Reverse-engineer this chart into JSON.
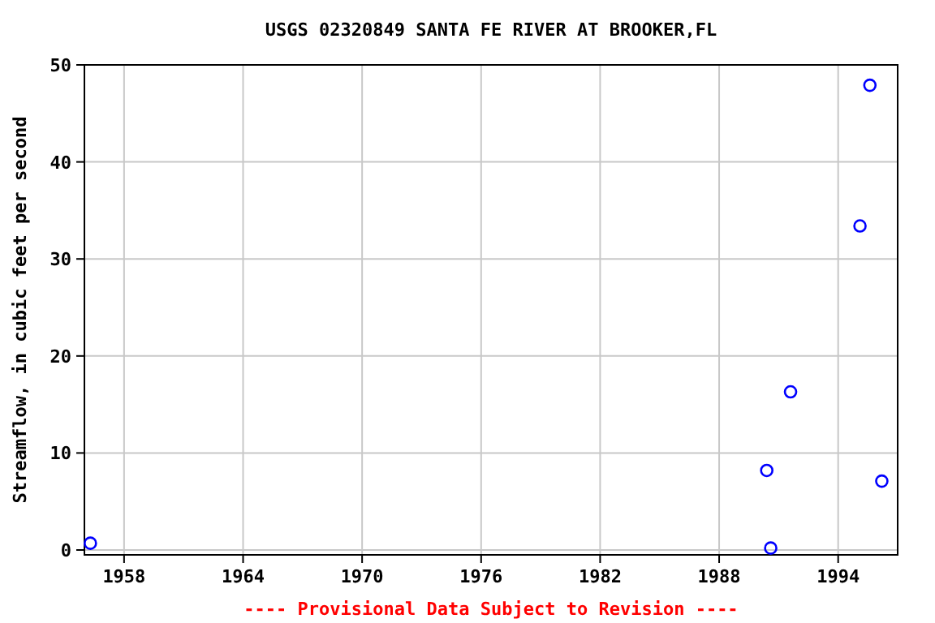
{
  "chart_data": {
    "type": "scatter",
    "title": "USGS 02320849 SANTA FE RIVER AT BROOKER,FL",
    "ylabel": "Streamflow, in cubic feet per second",
    "x": [
      1956.3,
      1990.4,
      1990.6,
      1991.6,
      1995.1,
      1995.6,
      1996.2
    ],
    "series": [
      {
        "color": "#0000ff",
        "values": [
          0.7,
          8.2,
          0.2,
          16.3,
          33.4,
          47.9,
          7.1
        ]
      }
    ],
    "xlim": [
      1956,
      1997
    ],
    "xticks": [
      1958,
      1964,
      1970,
      1976,
      1982,
      1988,
      1994
    ],
    "ylim": [
      -0.5,
      50
    ],
    "yticks": [
      0,
      10,
      20,
      30,
      40,
      50
    ],
    "grid": true,
    "marker": "circle",
    "annotations": [
      "---- Provisional Data Subject to Revision ----"
    ]
  }
}
